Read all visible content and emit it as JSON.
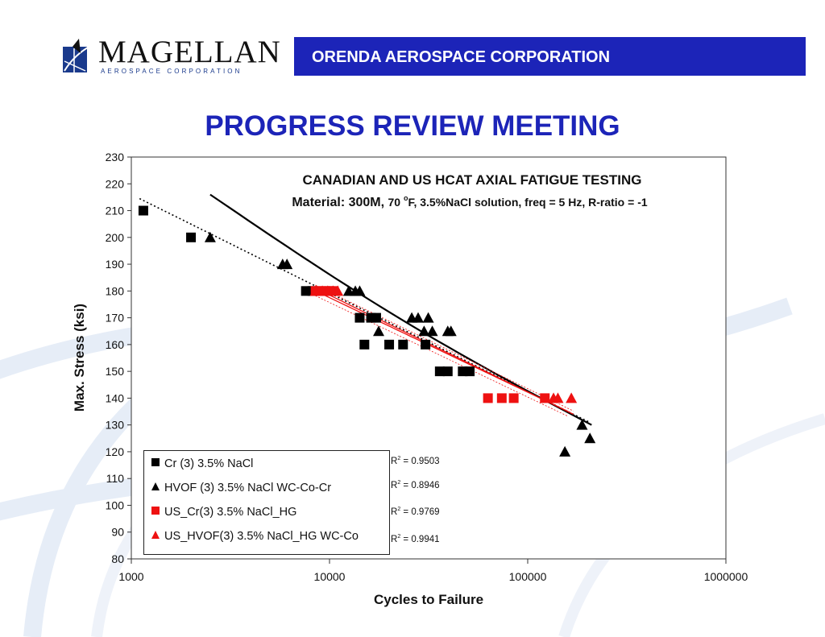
{
  "header": {
    "logo_name": "MAGELLAN",
    "logo_sub": "AEROSPACE CORPORATION",
    "banner": "ORENDA AEROSPACE CORPORATION"
  },
  "page_title": "PROGRESS REVIEW MEETING",
  "colors": {
    "accent": "#1c24b8",
    "series_black": "#000000",
    "series_red": "#ee1111"
  },
  "icons": {
    "logo": "globe-logo-icon"
  },
  "chart_data": {
    "type": "scatter",
    "title": "CANADIAN AND US HCAT AXIAL FATIGUE TESTING",
    "subtitle_pre": "Material: 300M, ",
    "subtitle_temp": "70 ",
    "subtitle_deg": "o",
    "subtitle_post": "F, 3.5%NaCl solution, freq = 5 Hz, R-ratio = -1",
    "xlabel": "Cycles to Failure",
    "ylabel": "Max. Stress (ksi)",
    "xscale": "log",
    "xlim": [
      1000,
      1000000
    ],
    "ylim": [
      80,
      230
    ],
    "xticks": [
      1000,
      10000,
      100000,
      1000000
    ],
    "xtick_labels": [
      "1000",
      "10000",
      "100000",
      "1000000"
    ],
    "yticks": [
      80,
      90,
      100,
      110,
      120,
      130,
      140,
      150,
      160,
      170,
      180,
      190,
      200,
      210,
      220,
      230
    ],
    "legend_position": "bottom-left",
    "series": [
      {
        "name": "Cr (3) 3.5% NaCl",
        "marker": "square",
        "color": "#000000",
        "points": [
          [
            1150,
            210
          ],
          [
            2000,
            200
          ],
          [
            7600,
            180
          ],
          [
            8200,
            180
          ],
          [
            14200,
            170
          ],
          [
            15000,
            160
          ],
          [
            16200,
            170
          ],
          [
            17200,
            170
          ],
          [
            20000,
            160
          ],
          [
            23500,
            160
          ],
          [
            30500,
            160
          ],
          [
            36000,
            150
          ],
          [
            39500,
            150
          ],
          [
            47000,
            150
          ],
          [
            51000,
            150
          ]
        ],
        "trend": {
          "style": "dotted",
          "x": [
            1100,
            205000
          ],
          "y": [
            214.5,
            131
          ]
        },
        "r2": "= 0.9503"
      },
      {
        "name": "HVOF (3) 3.5% NaCl WC-Co-Cr",
        "marker": "triangle",
        "color": "#000000",
        "points": [
          [
            2500,
            200
          ],
          [
            5800,
            190
          ],
          [
            6100,
            190
          ],
          [
            12500,
            180
          ],
          [
            13500,
            180
          ],
          [
            14200,
            180
          ],
          [
            17700,
            165
          ],
          [
            26000,
            170
          ],
          [
            28000,
            170
          ],
          [
            30000,
            165
          ],
          [
            31500,
            170
          ],
          [
            33000,
            165
          ],
          [
            39500,
            165
          ],
          [
            41000,
            165
          ],
          [
            154000,
            120
          ],
          [
            188000,
            130
          ],
          [
            206000,
            125
          ]
        ],
        "trend": {
          "style": "solid",
          "x": [
            2500,
            210000
          ],
          "y": [
            216,
            130
          ]
        },
        "r2": "= 0.8946"
      },
      {
        "name": "US_Cr(3) 3.5% NaCl_HG",
        "marker": "square",
        "color": "#ee1111",
        "points": [
          [
            8500,
            180
          ],
          [
            9000,
            180
          ],
          [
            9500,
            180
          ],
          [
            10000,
            180
          ],
          [
            10500,
            180
          ],
          [
            63000,
            140
          ],
          [
            74000,
            140
          ],
          [
            85000,
            140
          ],
          [
            122000,
            140
          ]
        ],
        "trend": {
          "style": "solid",
          "x": [
            8500,
            160000
          ],
          "y": [
            180,
            135
          ]
        },
        "r2": "= 0.9769"
      },
      {
        "name": "US_HVOF(3) 3.5% NaCl_HG WC-Co",
        "marker": "triangle",
        "color": "#ee1111",
        "points": [
          [
            8500,
            180
          ],
          [
            9200,
            180
          ],
          [
            9800,
            180
          ],
          [
            10400,
            180
          ],
          [
            11000,
            180
          ],
          [
            135000,
            140
          ],
          [
            142000,
            140
          ],
          [
            166000,
            140
          ]
        ],
        "trend": {
          "style": "solid",
          "x": [
            8500,
            170000
          ],
          "y": [
            181,
            134
          ]
        },
        "r2": "= 0.9941"
      }
    ]
  }
}
